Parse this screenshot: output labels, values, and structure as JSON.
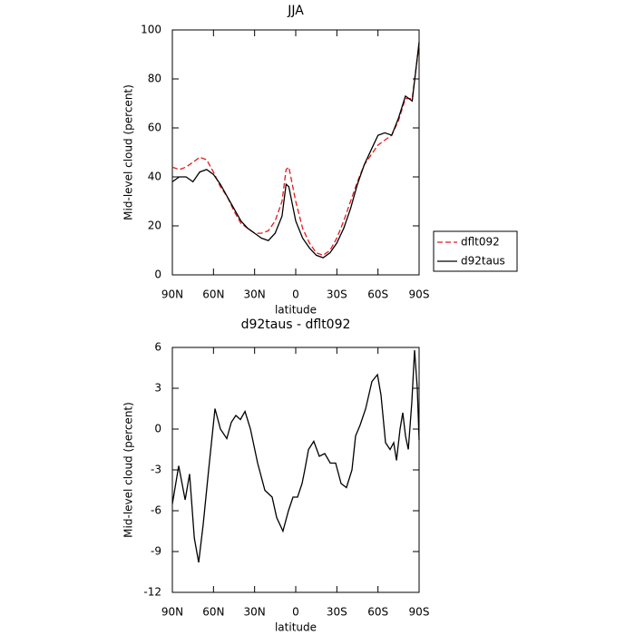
{
  "chart_data": [
    {
      "type": "line",
      "title": "JJA",
      "x_label": "latitude",
      "y_label": "Mid-level cloud (percent)",
      "xlim": [
        90,
        -90
      ],
      "xticks": [
        {
          "value": 90,
          "label": "90N"
        },
        {
          "value": 60,
          "label": "60N"
        },
        {
          "value": 30,
          "label": "30N"
        },
        0,
        {
          "value": -30,
          "label": "30S"
        },
        {
          "value": -60,
          "label": "60S"
        },
        {
          "value": -90,
          "label": "90S"
        }
      ],
      "ylim": [
        0,
        100
      ],
      "yticks": [
        0,
        20,
        40,
        60,
        80,
        100
      ],
      "legend": "right",
      "x": [
        90,
        85,
        80,
        75,
        70,
        65,
        60,
        55,
        50,
        45,
        40,
        35,
        30,
        25,
        20,
        15,
        10,
        7,
        5,
        0,
        -5,
        -10,
        -15,
        -20,
        -25,
        -30,
        -35,
        -40,
        -45,
        -50,
        -55,
        -60,
        -65,
        -70,
        -75,
        -80,
        -85,
        -90
      ],
      "series": [
        {
          "name": "dflt092",
          "color": "#e41a1c",
          "dash": true,
          "values": [
            44,
            43,
            44,
            46,
            48,
            47,
            42,
            36,
            32,
            26,
            21,
            19,
            17,
            17,
            18,
            22,
            30,
            43,
            44,
            30,
            19,
            13,
            9,
            8,
            10,
            15,
            22,
            30,
            38,
            45,
            49,
            53,
            55,
            57,
            63,
            72,
            72,
            94
          ]
        },
        {
          "name": "d92taus",
          "color": "#000000",
          "dash": false,
          "values": [
            38,
            40,
            40,
            38,
            42,
            43,
            41,
            37,
            32,
            27,
            22,
            19,
            17,
            15,
            14,
            17,
            24,
            37,
            36,
            22,
            15,
            11,
            8,
            7,
            9,
            13,
            19,
            27,
            37,
            45,
            51,
            57,
            58,
            57,
            64,
            73,
            71,
            95
          ]
        }
      ]
    },
    {
      "type": "line",
      "title": "d92taus - dflt092",
      "x_label": "latitude",
      "y_label": "Mid-level cloud (percent)",
      "xlim": [
        90,
        -90
      ],
      "xticks": [
        {
          "value": 90,
          "label": "90N"
        },
        {
          "value": 60,
          "label": "60N"
        },
        {
          "value": 30,
          "label": "30N"
        },
        0,
        {
          "value": -30,
          "label": "30S"
        },
        {
          "value": -60,
          "label": "60S"
        },
        {
          "value": -90,
          "label": "90S"
        }
      ],
      "ylim": [
        -12,
        6
      ],
      "yticks": [
        -12,
        -9,
        -6,
        -3,
        0,
        3,
        6
      ],
      "x": [
        90,
        85.4,
        80.7,
        77.4,
        74,
        70.8,
        67.5,
        63.5,
        58.9,
        54.9,
        50.3,
        47,
        43.7,
        40.4,
        37,
        33,
        27.8,
        22.5,
        17.2,
        13.9,
        9.3,
        5.3,
        2,
        -1.3,
        -4.6,
        -6.6,
        -9.3,
        -13.2,
        -17.2,
        -21.2,
        -25.2,
        -29.1,
        -33.1,
        -37,
        -41,
        -43.7,
        -47,
        -51,
        -55.6,
        -59.6,
        -62.2,
        -65.5,
        -68.8,
        -71.5,
        -73.5,
        -76.1,
        -78.1,
        -80.1,
        -82.1,
        -84.7,
        -86.7,
        -88.7,
        -90
      ],
      "series": [
        {
          "name": "d92taus - dflt092",
          "color": "#000000",
          "dash": false,
          "values": [
            -5.5,
            -2.7,
            -5.2,
            -3.3,
            -8,
            -9.8,
            -7,
            -3,
            1.5,
            0,
            -0.7,
            0.5,
            1,
            0.7,
            1.3,
            0,
            -2.5,
            -4.5,
            -5,
            -6.5,
            -7.5,
            -6,
            -5,
            -5,
            -4,
            -3,
            -1.5,
            -0.9,
            -2,
            -1.8,
            -2.5,
            -2.5,
            -4,
            -4.3,
            -3,
            -0.5,
            0.3,
            1.5,
            3.5,
            4,
            2.5,
            -1,
            -1.5,
            -1,
            -2.3,
            0,
            1.2,
            -0.5,
            -1.5,
            2,
            5.8,
            3,
            -0.8
          ]
        }
      ]
    }
  ]
}
